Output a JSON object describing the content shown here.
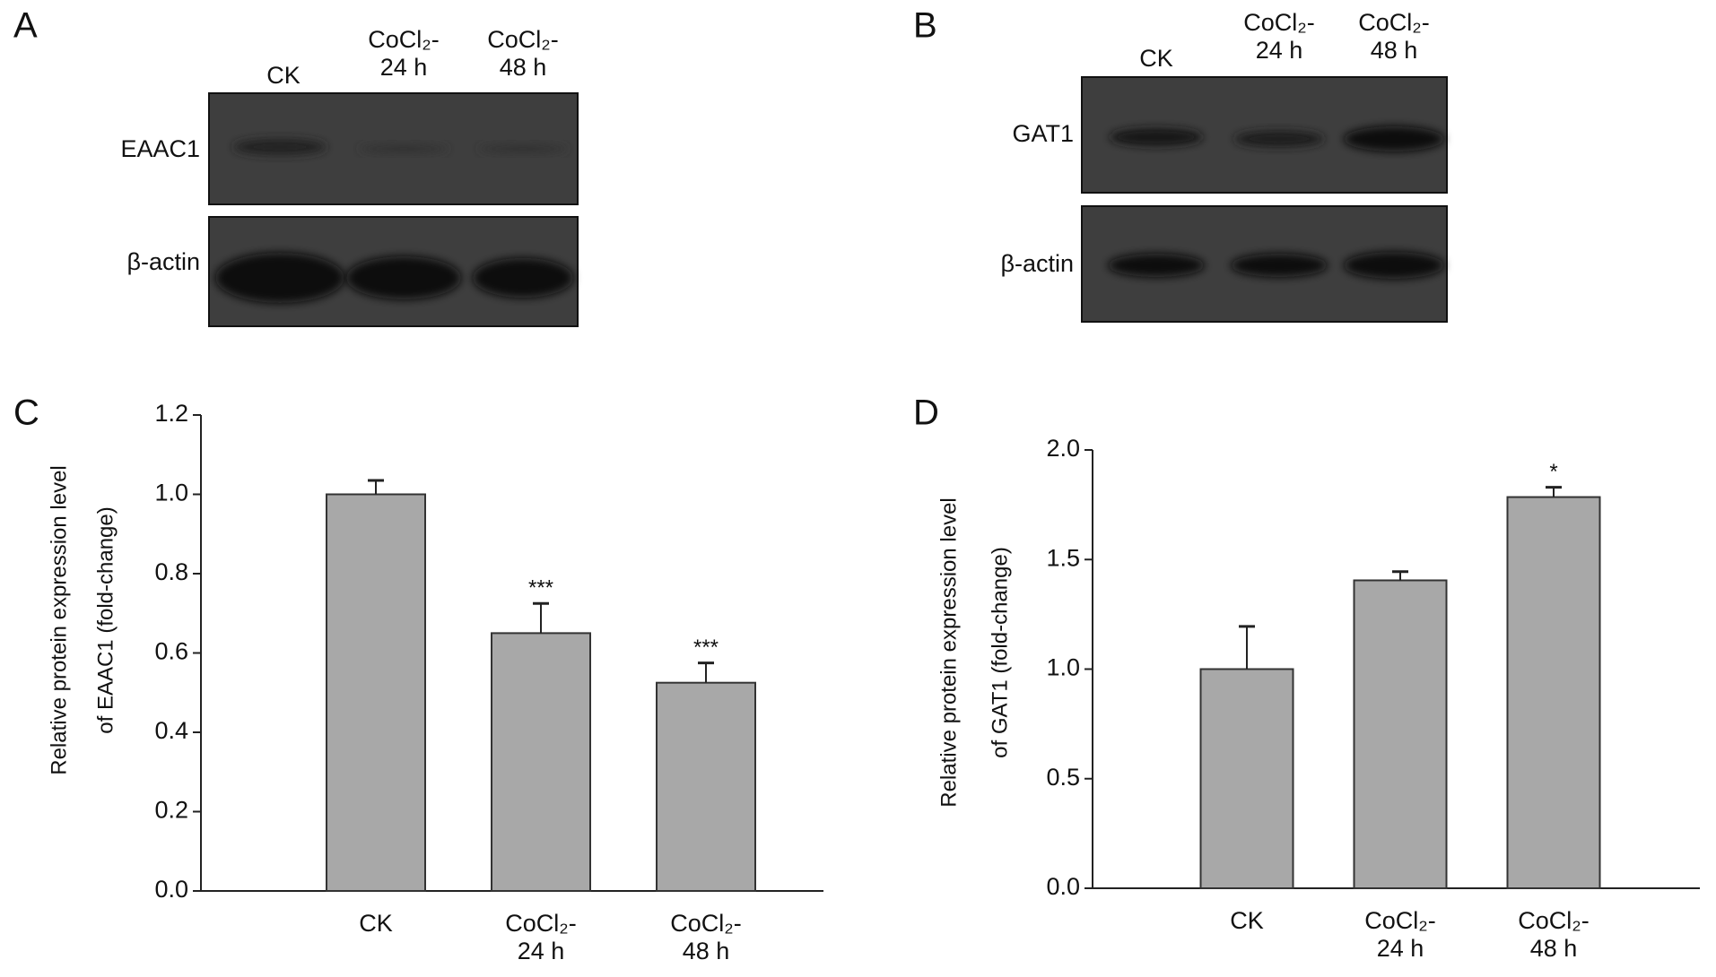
{
  "panels": [
    "A",
    "B",
    "C",
    "D"
  ],
  "blots": [
    {
      "lanes": [
        "CK",
        "CoCl₂-\n24 h",
        "CoCl₂-\n48 h"
      ],
      "bands": [
        "EAAC1",
        "β-actin"
      ]
    },
    {
      "lanes": [
        "CK",
        "CoCl₂-\n24 h",
        "CoCl₂-\n48 h"
      ],
      "bands": [
        "GAT1",
        "β-actin"
      ]
    }
  ],
  "chart_data": [
    {
      "type": "bar",
      "ylabel": [
        "Relative protein expression level",
        "of EAAC1 (fold-change)"
      ],
      "categories": [
        "CK",
        "CoCl₂-\n24 h",
        "CoCl₂-\n48 h"
      ],
      "values": [
        1.0,
        0.65,
        0.525
      ],
      "errors": [
        0.035,
        0.075,
        0.05
      ],
      "annotations": [
        null,
        "***",
        "***"
      ],
      "color": "#a8a8a8",
      "ylim": [
        0,
        1.2
      ],
      "yticks": [
        {
          "value": 0,
          "label": "0.0"
        },
        0.2,
        0.4,
        0.6,
        0.8,
        {
          "value": 1,
          "label": "1.0"
        },
        1.2
      ]
    },
    {
      "type": "bar",
      "ylabel": [
        "Relative protein expression level",
        "of GAT1 (fold-change)"
      ],
      "categories": [
        "CK",
        "CoCl₂-\n24 h",
        "CoCl₂-\n48 h"
      ],
      "values": [
        1.0,
        1.405,
        1.785
      ],
      "errors": [
        0.195,
        0.04,
        0.045
      ],
      "annotations": [
        null,
        null,
        "*"
      ],
      "color": "#a8a8a8",
      "ylim": [
        0,
        2.0
      ],
      "yticks": [
        {
          "value": 0,
          "label": "0.0"
        },
        0.5,
        {
          "value": 1,
          "label": "1.0"
        },
        1.5,
        {
          "value": 2,
          "label": "2.0"
        }
      ]
    }
  ]
}
